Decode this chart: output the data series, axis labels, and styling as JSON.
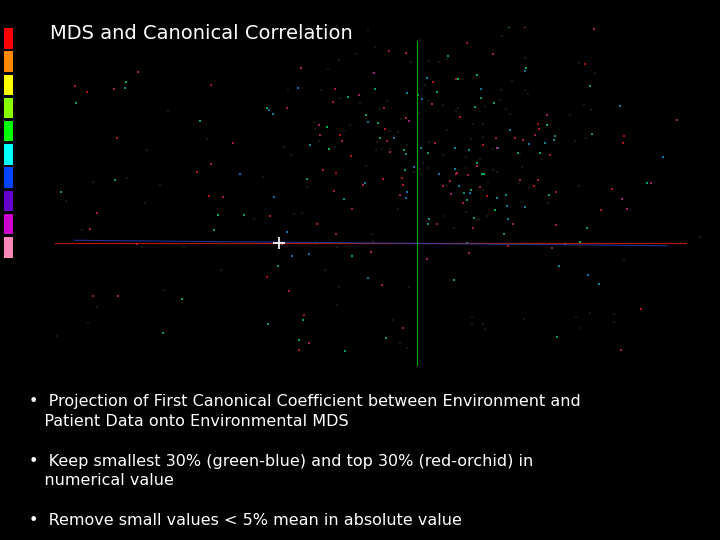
{
  "title": "MDS and Canonical Correlation",
  "background_color": "#000000",
  "title_color": "#ffffff",
  "title_fontsize": 14,
  "bullet_points": [
    "Projection of First Canonical Coefficient between Environment and\n   Patient Data onto Environmental MDS",
    "Keep smallest 30% (green-blue) and top 30% (red-orchid) in\n   numerical value",
    "Remove small values < 5% mean in absolute value"
  ],
  "bullet_color": "#ffffff",
  "bullet_fontsize": 11.5,
  "seed": 42,
  "colorbar_colors": [
    "#ff0000",
    "#ff8800",
    "#ffff00",
    "#88ff00",
    "#00ff00",
    "#00ffff",
    "#0044ff",
    "#6600cc",
    "#cc00cc",
    "#ff88bb"
  ]
}
